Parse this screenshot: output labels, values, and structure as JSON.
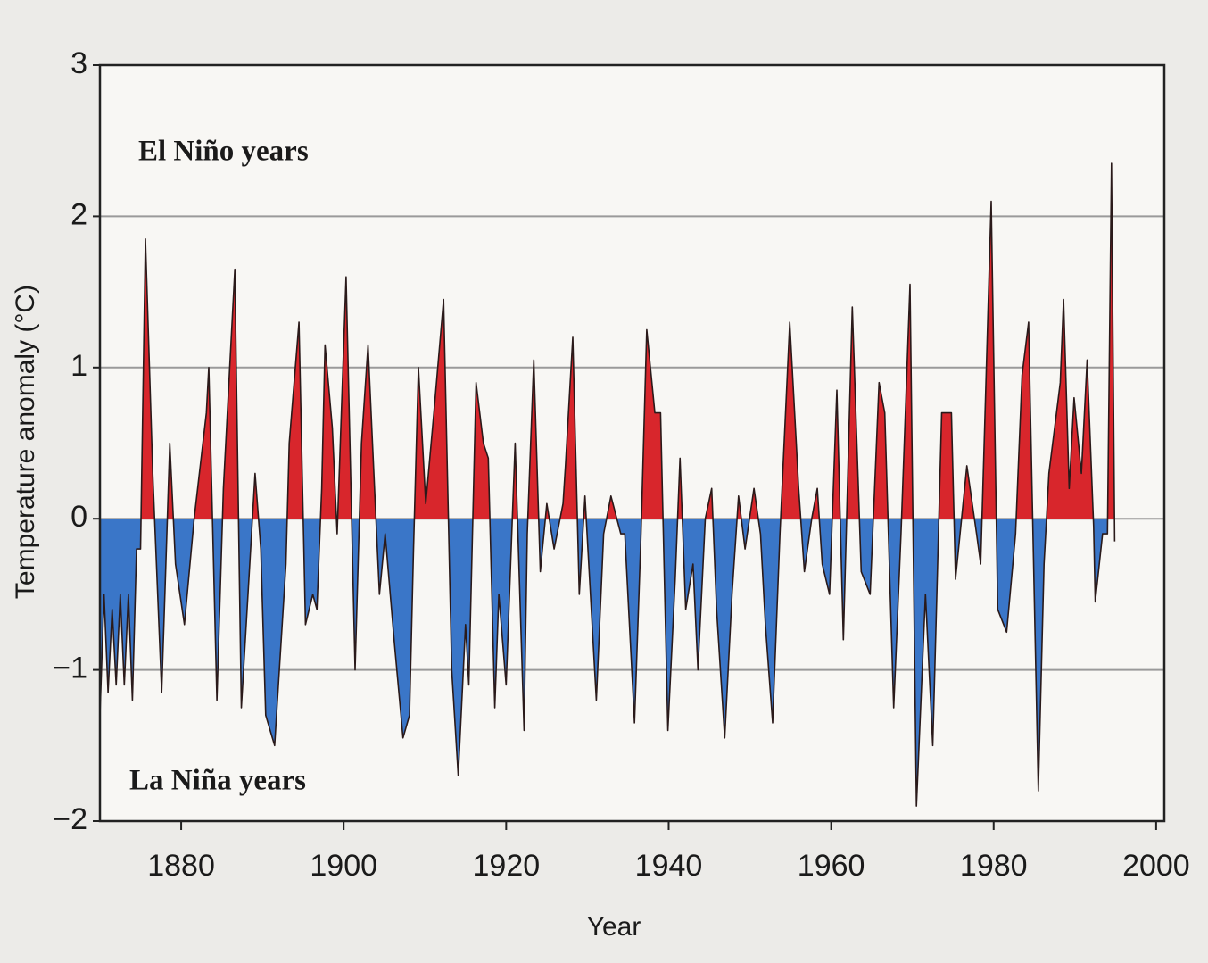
{
  "chart_data": {
    "type": "area",
    "annotations": [
      "El Niño years",
      "La Niña years"
    ],
    "y_label": "Temperature anomaly  (°C)",
    "x_label": "Year",
    "x": [
      1870.0,
      1870.5,
      1871.0,
      1871.5,
      1872.0,
      1872.5,
      1873.0,
      1873.5,
      1874.0,
      1874.5,
      1875.0,
      1875.6,
      1876.5,
      1877.6,
      1878.6,
      1879.3,
      1880.4,
      1881.6,
      1883.1,
      1883.4,
      1884.4,
      1885.2,
      1886.6,
      1887.4,
      1889.1,
      1889.8,
      1890.4,
      1891.5,
      1892.9,
      1893.3,
      1894.5,
      1895.3,
      1896.2,
      1896.7,
      1897.3,
      1897.7,
      1898.6,
      1899.2,
      1900.3,
      1901.4,
      1902.2,
      1903.0,
      1903.8,
      1904.4,
      1905.1,
      1906.2,
      1907.3,
      1908.1,
      1908.6,
      1909.2,
      1910.1,
      1911.1,
      1912.3,
      1913.3,
      1914.1,
      1915.0,
      1915.4,
      1916.3,
      1917.2,
      1917.8,
      1918.6,
      1919.1,
      1920.0,
      1921.1,
      1922.2,
      1922.6,
      1923.4,
      1924.2,
      1925.0,
      1925.9,
      1927.0,
      1927.3,
      1928.2,
      1929.0,
      1929.7,
      1931.1,
      1932.0,
      1932.9,
      1934.1,
      1934.6,
      1935.8,
      1936.6,
      1937.3,
      1938.3,
      1939.0,
      1939.9,
      1940.8,
      1941.4,
      1942.1,
      1943.0,
      1943.6,
      1944.5,
      1945.3,
      1945.9,
      1946.9,
      1947.8,
      1948.6,
      1949.4,
      1950.5,
      1951.3,
      1951.9,
      1952.8,
      1953.7,
      1954.9,
      1956.0,
      1956.7,
      1957.6,
      1958.3,
      1958.9,
      1959.8,
      1960.7,
      1961.5,
      1962.6,
      1963.7,
      1964.8,
      1965.9,
      1966.6,
      1967.7,
      1968.6,
      1969.7,
      1970.5,
      1971.6,
      1972.5,
      1973.6,
      1974.8,
      1975.3,
      1976.7,
      1977.9,
      1978.4,
      1979.7,
      1980.5,
      1981.6,
      1982.7,
      1983.5,
      1984.3,
      1985.5,
      1986.2,
      1986.8,
      1988.2,
      1988.6,
      1989.3,
      1989.9,
      1990.8,
      1991.5,
      1992.3,
      1992.5,
      1993.4,
      1994.0,
      1994.5,
      1994.9
    ],
    "values": [
      -1.3,
      -0.5,
      -1.15,
      -0.6,
      -1.1,
      -0.5,
      -1.1,
      -0.5,
      -1.2,
      -0.2,
      -0.2,
      1.85,
      0.3,
      -1.15,
      0.5,
      -0.3,
      -0.7,
      0.0,
      0.7,
      1.0,
      -1.2,
      0.2,
      1.65,
      -1.25,
      0.3,
      -0.2,
      -1.3,
      -1.5,
      -0.3,
      0.5,
      1.3,
      -0.7,
      -0.5,
      -0.6,
      0.2,
      1.15,
      0.6,
      -0.1,
      1.6,
      -1.0,
      0.5,
      1.15,
      0.2,
      -0.5,
      -0.1,
      -0.8,
      -1.45,
      -1.3,
      -0.2,
      1.0,
      0.1,
      0.7,
      1.45,
      -1.0,
      -1.7,
      -0.7,
      -1.1,
      0.9,
      0.5,
      0.4,
      -1.25,
      -0.5,
      -1.1,
      0.5,
      -1.4,
      -0.1,
      1.05,
      -0.35,
      0.1,
      -0.2,
      0.1,
      0.35,
      1.2,
      -0.5,
      0.15,
      -1.2,
      -0.1,
      0.15,
      -0.1,
      -0.1,
      -1.35,
      -0.1,
      1.25,
      0.7,
      0.7,
      -1.4,
      -0.4,
      0.4,
      -0.6,
      -0.3,
      -1.0,
      0.0,
      0.2,
      -0.6,
      -1.45,
      -0.5,
      0.15,
      -0.2,
      0.2,
      -0.1,
      -0.7,
      -1.35,
      -0.1,
      1.3,
      0.2,
      -0.35,
      0.0,
      0.2,
      -0.3,
      -0.5,
      0.85,
      -0.8,
      1.4,
      -0.35,
      -0.5,
      0.9,
      0.7,
      -1.25,
      -0.1,
      1.55,
      -1.9,
      -0.5,
      -1.5,
      0.7,
      0.7,
      -0.4,
      0.35,
      -0.1,
      -0.3,
      2.1,
      -0.6,
      -0.75,
      -0.1,
      0.95,
      1.3,
      -1.8,
      -0.3,
      0.3,
      0.9,
      1.45,
      0.2,
      0.8,
      0.3,
      1.05,
      -0.05,
      -0.55,
      -0.1,
      -0.1,
      2.35,
      -0.15
    ],
    "color_positive": "#d8262c",
    "color_negative": "#3a76c8",
    "line_color": "#2a1a1a",
    "xlim": [
      1870,
      2001
    ],
    "ylim": [
      -2,
      3
    ],
    "xticks": [
      1880,
      1900,
      1920,
      1940,
      1960,
      1980,
      2000
    ],
    "yticks": [
      {
        "value": -2,
        "label": "−2"
      },
      {
        "value": -1,
        "label": "−1"
      },
      0,
      1,
      2,
      3
    ],
    "grid": true
  }
}
